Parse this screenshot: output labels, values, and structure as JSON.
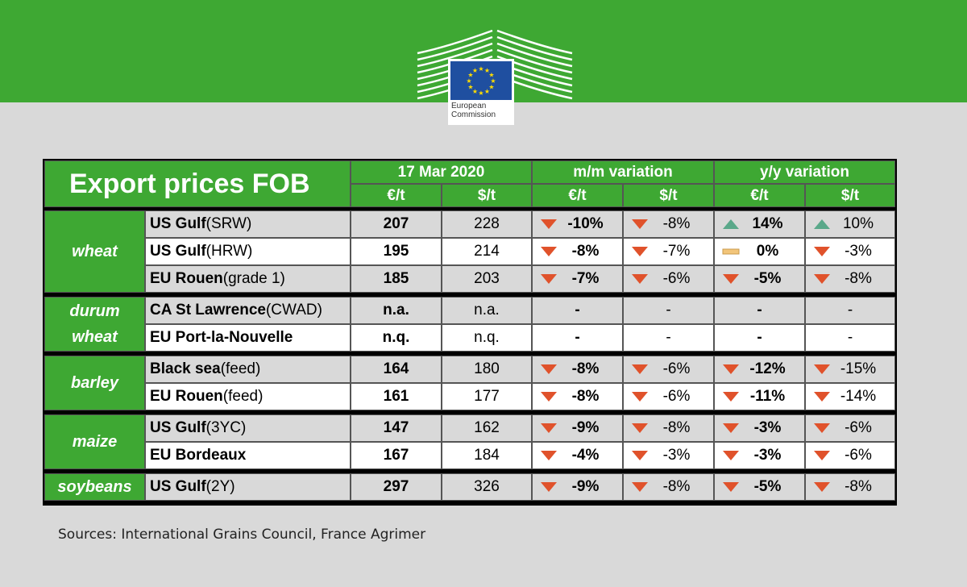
{
  "header": {
    "logo_lines": [
      "European",
      "Commission"
    ]
  },
  "table": {
    "title": "Export prices FOB",
    "col_groups": [
      "17 Mar 2020",
      "m/m variation",
      "y/y variation"
    ],
    "units": [
      "€/t",
      "$/t",
      "€/t",
      "$/t",
      "€/t",
      "$/t"
    ],
    "groups": [
      {
        "category": [
          "wheat"
        ],
        "rows": [
          {
            "loc": "US Gulf",
            "spec": " (SRW)",
            "eur": "207",
            "usd": "228",
            "mm_eur": {
              "dir": "down",
              "v": "-10%"
            },
            "mm_usd": {
              "dir": "down",
              "v": "-8%"
            },
            "yy_eur": {
              "dir": "up",
              "v": "14%"
            },
            "yy_usd": {
              "dir": "up",
              "v": "10%"
            }
          },
          {
            "loc": "US Gulf",
            "spec": " (HRW)",
            "eur": "195",
            "usd": "214",
            "mm_eur": {
              "dir": "down",
              "v": "-8%"
            },
            "mm_usd": {
              "dir": "down",
              "v": "-7%"
            },
            "yy_eur": {
              "dir": "flat",
              "v": "0%"
            },
            "yy_usd": {
              "dir": "down",
              "v": "-3%"
            }
          },
          {
            "loc": "EU Rouen",
            "spec": " (grade 1)",
            "eur": "185",
            "usd": "203",
            "mm_eur": {
              "dir": "down",
              "v": "-7%"
            },
            "mm_usd": {
              "dir": "down",
              "v": "-6%"
            },
            "yy_eur": {
              "dir": "down",
              "v": "-5%"
            },
            "yy_usd": {
              "dir": "down",
              "v": "-8%"
            }
          }
        ]
      },
      {
        "category": [
          "durum",
          "wheat"
        ],
        "rows": [
          {
            "loc": "CA St Lawrence",
            "spec": " (CWAD)",
            "eur": "n.a.",
            "usd": "n.a.",
            "mm_eur": {
              "dir": "none",
              "v": "-"
            },
            "mm_usd": {
              "dir": "none",
              "v": "-"
            },
            "yy_eur": {
              "dir": "none",
              "v": "-"
            },
            "yy_usd": {
              "dir": "none",
              "v": "-"
            }
          },
          {
            "loc": "EU Port-la-Nouvelle",
            "spec": "",
            "eur": "n.q.",
            "usd": "n.q.",
            "mm_eur": {
              "dir": "none",
              "v": "-"
            },
            "mm_usd": {
              "dir": "none",
              "v": "-"
            },
            "yy_eur": {
              "dir": "none",
              "v": "-"
            },
            "yy_usd": {
              "dir": "none",
              "v": "-"
            }
          }
        ]
      },
      {
        "category": [
          "barley"
        ],
        "rows": [
          {
            "loc": "Black sea",
            "spec": " (feed)",
            "eur": "164",
            "usd": "180",
            "mm_eur": {
              "dir": "down",
              "v": "-8%"
            },
            "mm_usd": {
              "dir": "down",
              "v": "-6%"
            },
            "yy_eur": {
              "dir": "down",
              "v": "-12%"
            },
            "yy_usd": {
              "dir": "down",
              "v": "-15%"
            }
          },
          {
            "loc": "EU Rouen",
            "spec": " (feed)",
            "eur": "161",
            "usd": "177",
            "mm_eur": {
              "dir": "down",
              "v": "-8%"
            },
            "mm_usd": {
              "dir": "down",
              "v": "-6%"
            },
            "yy_eur": {
              "dir": "down",
              "v": "-11%"
            },
            "yy_usd": {
              "dir": "down",
              "v": "-14%"
            }
          }
        ]
      },
      {
        "category": [
          "maize"
        ],
        "rows": [
          {
            "loc": "US Gulf",
            "spec": " (3YC)",
            "eur": "147",
            "usd": "162",
            "mm_eur": {
              "dir": "down",
              "v": "-9%"
            },
            "mm_usd": {
              "dir": "down",
              "v": "-8%"
            },
            "yy_eur": {
              "dir": "down",
              "v": "-3%"
            },
            "yy_usd": {
              "dir": "down",
              "v": "-6%"
            }
          },
          {
            "loc": "EU Bordeaux",
            "spec": "",
            "eur": "167",
            "usd": "184",
            "mm_eur": {
              "dir": "down",
              "v": "-4%"
            },
            "mm_usd": {
              "dir": "down",
              "v": "-3%"
            },
            "yy_eur": {
              "dir": "down",
              "v": "-3%"
            },
            "yy_usd": {
              "dir": "down",
              "v": "-6%"
            }
          }
        ]
      },
      {
        "category": [
          "soybeans"
        ],
        "rows": [
          {
            "loc": "US Gulf",
            "spec": " (2Y)",
            "eur": "297",
            "usd": "326",
            "mm_eur": {
              "dir": "down",
              "v": "-9%"
            },
            "mm_usd": {
              "dir": "down",
              "v": "-8%"
            },
            "yy_eur": {
              "dir": "down",
              "v": "-5%"
            },
            "yy_usd": {
              "dir": "down",
              "v": "-8%"
            }
          }
        ]
      }
    ]
  },
  "colors": {
    "green": "#3ea833",
    "down_arrow": "#e0522b",
    "up_arrow": "#5aa88a",
    "flat_bar": "#f2c57a"
  },
  "footer": {
    "sources": "Sources: International Grains Council, France Agrimer"
  }
}
